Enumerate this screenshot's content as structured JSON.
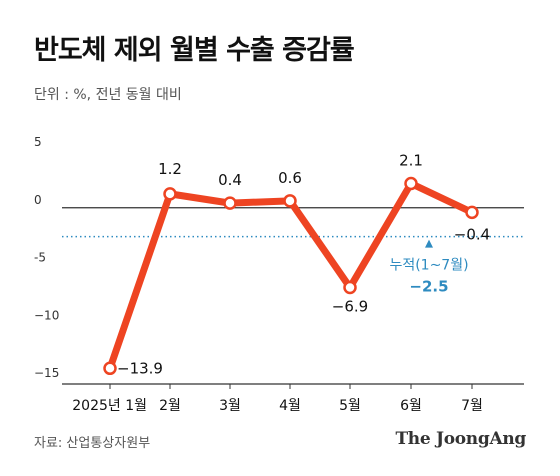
{
  "header": {
    "title": "반도체 제외 월별 수출 증감률",
    "subtitle": "단위 : %, 전년 동월 대비"
  },
  "footer": {
    "source": "자료: 산업통상자원부",
    "brand": "The JoongAng"
  },
  "colors": {
    "line": "#ee4422",
    "cumulative": "#2e8bc0",
    "axis": "#333333",
    "text": "#111111"
  },
  "chart_data": {
    "type": "line",
    "title": "반도체 제외 월별 수출 증감률",
    "categories": [
      "2025년 1월",
      "2월",
      "3월",
      "4월",
      "5월",
      "6월",
      "7월"
    ],
    "values": [
      -13.9,
      1.2,
      0.4,
      0.6,
      -6.9,
      2.1,
      -0.4
    ],
    "value_labels": [
      "−13.9",
      "1.2",
      "0.4",
      "0.6",
      "−6.9",
      "2.1",
      "−0.4"
    ],
    "y_ticks": [
      5,
      0,
      -5,
      -10,
      -15
    ],
    "y_tick_labels": [
      "5",
      "0",
      "-5",
      "−10",
      "−15"
    ],
    "ylim": [
      -15,
      5
    ],
    "reference_line": {
      "value": -2.5,
      "style": "dotted",
      "label": "누적(1~7월)",
      "value_label": "−2.5"
    },
    "grid": false
  }
}
